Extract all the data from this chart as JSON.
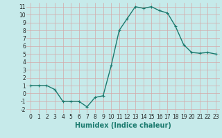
{
  "x": [
    0,
    1,
    2,
    3,
    4,
    5,
    6,
    7,
    8,
    9,
    10,
    11,
    12,
    13,
    14,
    15,
    16,
    17,
    18,
    19,
    20,
    21,
    22,
    23
  ],
  "y": [
    1,
    1,
    1,
    0.5,
    -1,
    -1,
    -1,
    -1.7,
    -0.5,
    -0.3,
    3.5,
    8,
    9.5,
    11,
    10.8,
    11,
    10.5,
    10.2,
    8.5,
    6.2,
    5.2,
    5.1,
    5.2,
    5.0
  ],
  "line_color": "#1a7a6e",
  "marker": "+",
  "bg_color": "#c6eaea",
  "grid_color": "#d4a8a8",
  "xlabel": "Humidex (Indice chaleur)",
  "xlim": [
    -0.5,
    23.5
  ],
  "ylim": [
    -2.5,
    11.5
  ],
  "yticks": [
    -2,
    -1,
    0,
    1,
    2,
    3,
    4,
    5,
    6,
    7,
    8,
    9,
    10,
    11
  ],
  "xticks": [
    0,
    1,
    2,
    3,
    4,
    5,
    6,
    7,
    8,
    9,
    10,
    11,
    12,
    13,
    14,
    15,
    16,
    17,
    18,
    19,
    20,
    21,
    22,
    23
  ],
  "xlabel_fontsize": 7,
  "tick_fontsize": 5.5,
  "linewidth": 1.0,
  "marker_size": 3,
  "marker_ew": 0.8
}
